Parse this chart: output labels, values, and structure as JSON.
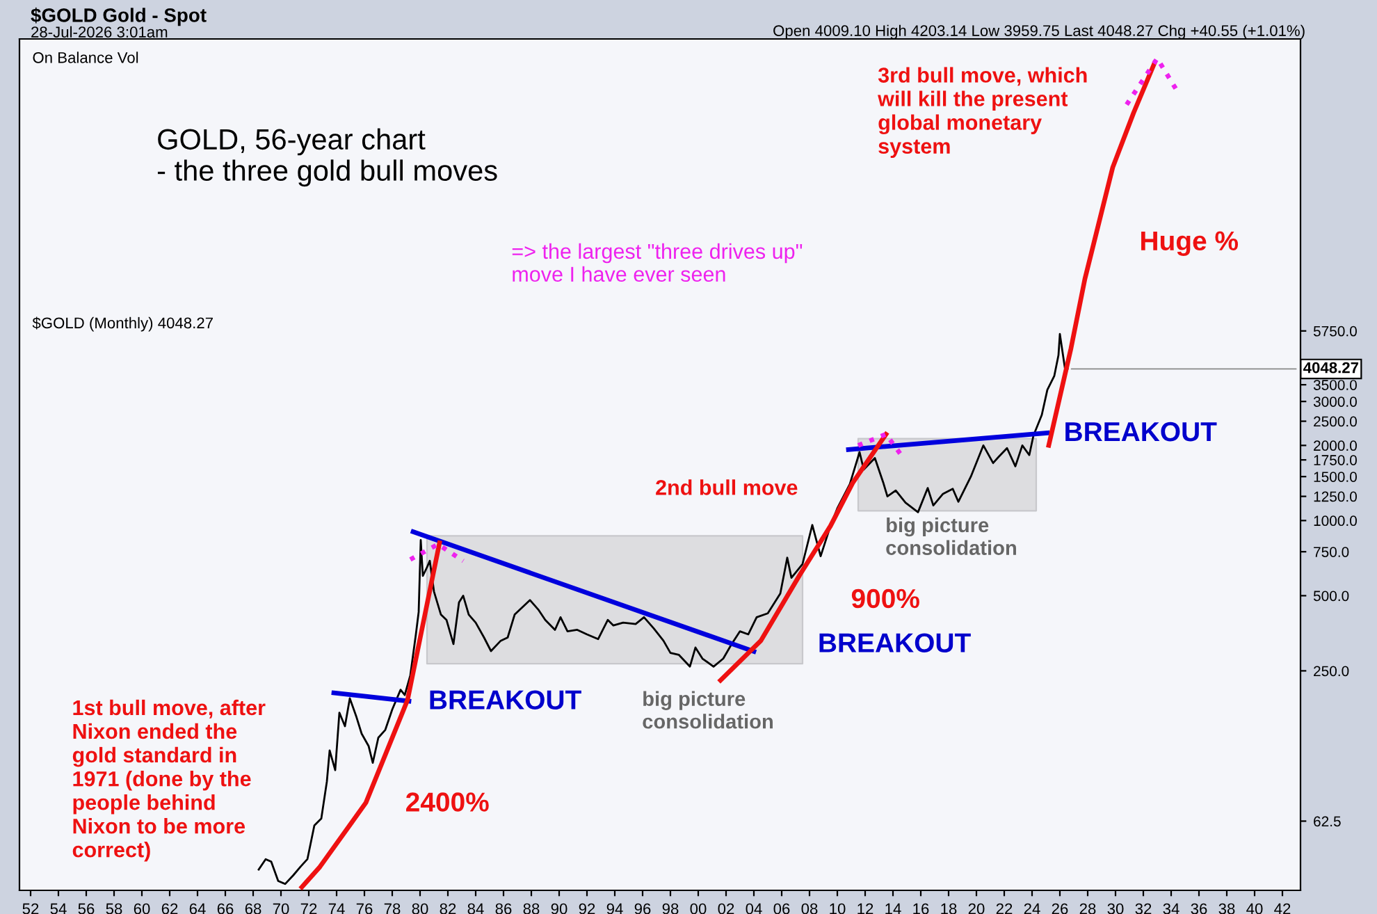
{
  "chart_data": {
    "type": "line",
    "title": "$GOLD Gold - Spot",
    "subtitle": "28-Jul-2026 3:01am",
    "log": "y",
    "grid": false,
    "tick_labels": "xy",
    "xlim": [
      1951.2,
      2043.3
    ],
    "ylim": [
      33,
      85000
    ],
    "xticks": [
      {
        "value": 1952,
        "label": "52"
      },
      {
        "value": 1954,
        "label": "54"
      },
      {
        "value": 1956,
        "label": "56"
      },
      {
        "value": 1958,
        "label": "58"
      },
      {
        "value": 1960,
        "label": "60"
      },
      {
        "value": 1962,
        "label": "62"
      },
      {
        "value": 1964,
        "label": "64"
      },
      {
        "value": 1966,
        "label": "66"
      },
      {
        "value": 1968,
        "label": "68"
      },
      {
        "value": 1970,
        "label": "70"
      },
      {
        "value": 1972,
        "label": "72"
      },
      {
        "value": 1974,
        "label": "74"
      },
      {
        "value": 1976,
        "label": "76"
      },
      {
        "value": 1978,
        "label": "78"
      },
      {
        "value": 1980,
        "label": "80"
      },
      {
        "value": 1982,
        "label": "82"
      },
      {
        "value": 1984,
        "label": "84"
      },
      {
        "value": 1986,
        "label": "86"
      },
      {
        "value": 1988,
        "label": "88"
      },
      {
        "value": 1990,
        "label": "90"
      },
      {
        "value": 1992,
        "label": "92"
      },
      {
        "value": 1994,
        "label": "94"
      },
      {
        "value": 1996,
        "label": "96"
      },
      {
        "value": 1998,
        "label": "98"
      },
      {
        "value": 2000,
        "label": "00"
      },
      {
        "value": 2002,
        "label": "02"
      },
      {
        "value": 2004,
        "label": "04"
      },
      {
        "value": 2006,
        "label": "06"
      },
      {
        "value": 2008,
        "label": "08"
      },
      {
        "value": 2010,
        "label": "10"
      },
      {
        "value": 2012,
        "label": "12"
      },
      {
        "value": 2014,
        "label": "14"
      },
      {
        "value": 2016,
        "label": "16"
      },
      {
        "value": 2018,
        "label": "18"
      },
      {
        "value": 2020,
        "label": "20"
      },
      {
        "value": 2022,
        "label": "22"
      },
      {
        "value": 2024,
        "label": "24"
      },
      {
        "value": 2026,
        "label": "26"
      },
      {
        "value": 2028,
        "label": "28"
      },
      {
        "value": 2030,
        "label": "30"
      },
      {
        "value": 2032,
        "label": "32"
      },
      {
        "value": 2034,
        "label": "34"
      },
      {
        "value": 2036,
        "label": "36"
      },
      {
        "value": 2038,
        "label": "38"
      },
      {
        "value": 2040,
        "label": "40"
      },
      {
        "value": 2042,
        "label": "42"
      }
    ],
    "yticks": [
      {
        "value": 62.5,
        "label": "62.5"
      },
      {
        "value": 250,
        "label": "250.0"
      },
      {
        "value": 500,
        "label": "500.0"
      },
      {
        "value": 750,
        "label": "750.0"
      },
      {
        "value": 1000,
        "label": "1000.0"
      },
      {
        "value": 1250,
        "label": "1250.0"
      },
      {
        "value": 1500,
        "label": "1500.0"
      },
      {
        "value": 1750,
        "label": "1750.0"
      },
      {
        "value": 2000,
        "label": "2000.0"
      },
      {
        "value": 2500,
        "label": "2500.0"
      },
      {
        "value": 3000,
        "label": "3000.0"
      },
      {
        "value": 3500,
        "label": "3500.0"
      },
      {
        "value": 5750,
        "label": "5750.0"
      }
    ],
    "series": [
      {
        "type": "line",
        "color": "#dddde0",
        "x": [
          1980.5,
          2007.5
        ],
        "values": [
          null,
          null
        ],
        "lower": [
          267,
          267
        ],
        "upper": [
          868,
          868
        ]
      },
      {
        "type": "line",
        "color": "#dddde0",
        "x": [
          2011.5,
          2024.3
        ],
        "values": [
          null,
          null
        ],
        "lower": [
          1094,
          1094
        ],
        "upper": [
          2130,
          2130
        ]
      },
      {
        "color": "#000000",
        "x": [
          1968.4,
          1968.9,
          1969.3,
          1969.8,
          1970.3,
          1970.9,
          1971.4,
          1971.9,
          1972.4,
          1972.9,
          1973.3,
          1973.5,
          1973.9,
          1974.2,
          1974.6,
          1974.95,
          1975.4,
          1975.8,
          1976.3,
          1976.6,
          1977.0,
          1977.5,
          1978.0,
          1978.6,
          1978.9,
          1979.3,
          1979.7,
          1979.9,
          1980.05,
          1980.2,
          1980.5,
          1980.7,
          1981.0,
          1981.5,
          1981.9,
          1982.4,
          1982.8,
          1983.1,
          1983.5,
          1984.0,
          1984.6,
          1985.1,
          1985.8,
          1986.3,
          1986.8,
          1987.9,
          1988.5,
          1989.0,
          1989.7,
          1990.1,
          1990.6,
          1991.3,
          1992.0,
          1992.8,
          1993.5,
          1993.9,
          1994.6,
          1995.5,
          1996.1,
          1996.8,
          1997.5,
          1998.0,
          1998.6,
          1999.4,
          1999.8,
          2000.3,
          2001.1,
          2001.8,
          2002.4,
          2003.0,
          2003.6,
          2004.2,
          2005.0,
          2005.9,
          2006.4,
          2006.7,
          2007.5,
          2008.2,
          2008.8,
          2009.5,
          2010.0,
          2010.9,
          2011.6,
          2011.9,
          2012.7,
          2013.3,
          2013.6,
          2014.2,
          2014.9,
          2015.8,
          2016.5,
          2016.9,
          2017.6,
          2018.3,
          2018.7,
          2019.6,
          2020.5,
          2021.2,
          2021.6,
          2022.2,
          2022.8,
          2023.3,
          2023.8,
          2024.1,
          2024.7,
          2025.1,
          2025.6,
          2025.9,
          2026.0,
          2026.2,
          2026.4,
          2026.55
        ],
        "values": [
          40,
          44,
          43,
          36,
          35,
          38,
          41,
          44,
          60,
          64,
          90,
          120,
          100,
          170,
          150,
          194,
          165,
          140,
          125,
          107,
          135,
          145,
          175,
          210,
          200,
          240,
          350,
          430,
          835,
          600,
          650,
          690,
          520,
          420,
          400,
          320,
          470,
          500,
          420,
          390,
          340,
          300,
          330,
          340,
          420,
          480,
          440,
          400,
          365,
          410,
          360,
          365,
          350,
          335,
          400,
          380,
          390,
          385,
          410,
          370,
          330,
          295,
          290,
          260,
          310,
          280,
          260,
          280,
          320,
          360,
          350,
          410,
          425,
          510,
          710,
          590,
          670,
          960,
          720,
          950,
          1120,
          1400,
          1880,
          1600,
          1780,
          1420,
          1250,
          1320,
          1180,
          1080,
          1350,
          1150,
          1280,
          1340,
          1190,
          1500,
          2000,
          1700,
          1800,
          1950,
          1650,
          2000,
          1830,
          2190,
          2650,
          3340,
          3800,
          4600,
          5590,
          4700,
          3950,
          4048.27
        ]
      },
      {
        "type": "line",
        "color": "#0000dd",
        "x": [
          1973.8,
          1979.2
        ],
        "values": [
          204,
          189
        ]
      },
      {
        "type": "line",
        "color": "#0000dd",
        "x": [
          1979.5,
          2004.0
        ],
        "values": [
          902,
          299
        ]
      },
      {
        "type": "line",
        "color": "#0000dd",
        "x": [
          2010.8,
          2025.1
        ],
        "values": [
          1925,
          2245
        ]
      },
      {
        "type": "line",
        "color": "#ee1111",
        "x": [
          1971.5,
          1972.8,
          1976.1,
          1979.1,
          1981.4
        ],
        "values": [
          34,
          41,
          74,
          191,
          814
        ]
      },
      {
        "type": "line",
        "color": "#ee1111",
        "x": [
          2001.6,
          2004.5,
          2007.3,
          2009.5,
          2011.1,
          2013.5
        ],
        "values": [
          229,
          330,
          606,
          950,
          1414,
          2217
        ]
      },
      {
        "type": "line",
        "color": "#ee1111",
        "x": [
          2025.2,
          2026.8,
          2027.8,
          2029.8,
          2031.3,
          2032.8
        ],
        "values": [
          2000,
          4900,
          9300,
          26000,
          43000,
          68000
        ]
      },
      {
        "type": "line",
        "color": "#ee22ee",
        "line_style": "dotted",
        "x": [
          1979.3,
          1981.3,
          1983.1
        ],
        "values": [
          698,
          804,
          689
        ]
      },
      {
        "type": "line",
        "color": "#ee22ee",
        "line_style": "dotted",
        "x": [
          2011.5,
          2013.5,
          2014.6
        ],
        "values": [
          2000,
          2217,
          1828
        ]
      },
      {
        "type": "line",
        "color": "#ee22ee",
        "line_style": "dotted",
        "x": [
          2030.8,
          2033.0,
          2034.6
        ],
        "values": [
          46400,
          71000,
          50800
        ]
      }
    ],
    "annotations": [
      "Open 4009.10 High 4203.14 Low 3959.75 Last 4048.27 Chg +40.55 (+1.01%)",
      "On Balance Vol",
      "GOLD, 56-year chart\n- the three gold bull moves",
      "=> the largest \"three drives up\"\nmove I have ever seen",
      "$GOLD (Monthly) 4048.27",
      {
        "text": "4048.27",
        "x": 2026.55,
        "y": 4048.27
      },
      "1st bull move, after\nNixon ended the\ngold standard in\n1971 (done by the\npeople behind\nNixon to be more\ncorrect)",
      "2400%",
      "BREAKOUT",
      "big picture\nconsolidation",
      "BREAKOUT",
      "900%",
      "2nd bull move",
      "big picture\nconsolidation",
      "BREAKOUT",
      "Huge %",
      "3rd bull move, which\nwill kill the present\nglobal monetary\nsystem"
    ]
  }
}
